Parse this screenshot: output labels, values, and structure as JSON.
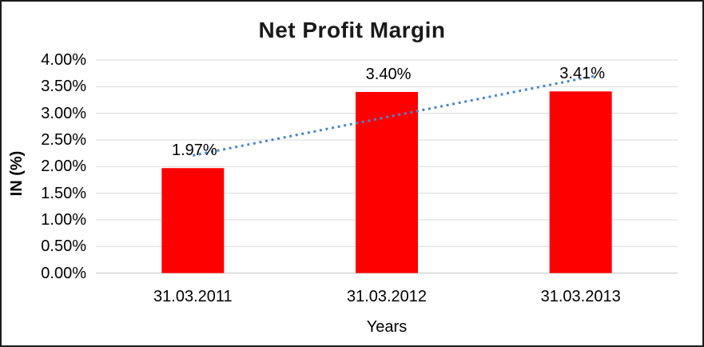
{
  "window": {
    "background": "#ffffff",
    "border_color": "#1c1c1c"
  },
  "chart_data": {
    "type": "bar",
    "title": "Net Profit Margin",
    "xlabel": "Years",
    "ylabel": "IN (%)",
    "categories": [
      "31.03.2011",
      "31.03.2012",
      "31.03.2013"
    ],
    "series": [
      {
        "name": "Net Profit Margin",
        "values": [
          1.97,
          3.4,
          3.41
        ]
      }
    ],
    "data_labels": [
      "1.97%",
      "3.40%",
      "3.41%"
    ],
    "y_ticks": [
      "4.00%",
      "3.50%",
      "3.00%",
      "2.50%",
      "2.00%",
      "1.50%",
      "1.00%",
      "0.50%",
      "0.00%"
    ],
    "y_tick_values": [
      4.0,
      3.5,
      3.0,
      2.5,
      2.0,
      1.5,
      1.0,
      0.5,
      0.0
    ],
    "ylim": [
      0,
      4
    ],
    "y_step": 0.5,
    "grid": true,
    "legend": "none",
    "bar_color": "#ff0000",
    "gridline_color": "#d9d9d9",
    "axis_line_color": "#c6c6c6",
    "trendline": {
      "type": "linear",
      "style": "dotted",
      "color": "#4a86c8"
    }
  }
}
